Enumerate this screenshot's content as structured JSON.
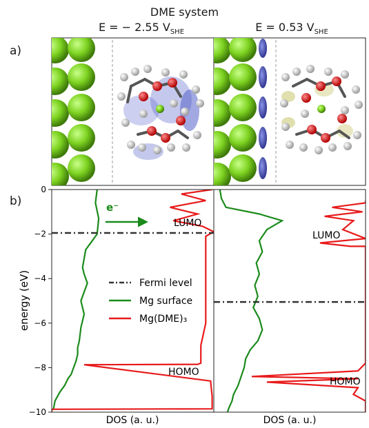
{
  "figure": {
    "title": "DME system",
    "panel_a_label": "a)",
    "panel_b_label": "b)",
    "left_potential": {
      "main": "E = − 2.55 V",
      "sub": "SHE"
    },
    "right_potential": {
      "main": "E = 0.53 V",
      "sub": "SHE"
    }
  },
  "colors": {
    "mg_atom": "#7ed321",
    "mg_surface_line": "#1a8a1a",
    "complex_line": "#e8191a",
    "fermi_line": "#333333",
    "isosurface_blue": "#5561c9",
    "isosurface_yellow": "#d8d79a"
  },
  "chart_data": [
    {
      "type": "line",
      "panel": "left",
      "ylabel": "energy (eV)",
      "xlabel": "DOS (a. u.)",
      "ylim": [
        -10,
        0
      ],
      "yticks": [
        "0",
        "−2",
        "−4",
        "−6",
        "−8",
        "−10"
      ],
      "fermi_level": -1.95,
      "legend": {
        "placement": "center",
        "entries": [
          "Fermi level",
          "Mg surface",
          "Mg(DME)₃"
        ]
      },
      "annotations": {
        "electron": "e⁻",
        "lumo": "LUMO",
        "homo": "HOMO"
      },
      "series": [
        {
          "name": "Mg surface",
          "x": [
            0.28,
            0.27,
            0.29,
            0.28,
            0.25,
            0.21,
            0.2,
            0.19,
            0.2,
            0.22,
            0.2,
            0.18,
            0.2,
            0.18,
            0.17,
            0.16,
            0.16,
            0.15,
            0.14,
            0.13,
            0.12,
            0.1,
            0.08,
            0.05,
            0.02,
            0.01
          ],
          "y": [
            0,
            -0.6,
            -1.3,
            -2.0,
            -2.3,
            -2.7,
            -3.1,
            -3.5,
            -3.8,
            -4.2,
            -4.6,
            -5.0,
            -5.6,
            -6.2,
            -6.8,
            -7.1,
            -7.4,
            -7.7,
            -7.9,
            -8.1,
            -8.3,
            -8.5,
            -8.8,
            -9.1,
            -9.5,
            -9.9
          ]
        },
        {
          "name": "Mg(DME)₃",
          "x": [
            0.99,
            0.8,
            0.95,
            0.73,
            0.9,
            0.75,
            0.93,
            1.0,
            0.95,
            0.95,
            0.95,
            0.92,
            0.92,
            0.92,
            0.9,
            0.9,
            0.2,
            0.98,
            0.99,
            0.99,
            0.0,
            0.0
          ],
          "y": [
            0,
            -0.2,
            -0.5,
            -0.8,
            -1.1,
            -1.4,
            -1.65,
            -1.9,
            -2.1,
            -4.0,
            -6.0,
            -7.0,
            -7.5,
            -7.8,
            -7.85,
            -7.85,
            -7.87,
            -8.6,
            -9.3,
            -9.85,
            -9.87,
            -10
          ]
        }
      ]
    },
    {
      "type": "line",
      "panel": "right",
      "xlabel": "DOS (a. u.)",
      "ylim": [
        -10,
        0
      ],
      "fermi_level": -5.05,
      "annotations": {
        "lumo": "LUMO",
        "homo": "HOMO"
      },
      "series": [
        {
          "name": "Mg surface",
          "x": [
            0.04,
            0.05,
            0.08,
            0.3,
            0.45,
            0.35,
            0.3,
            0.32,
            0.28,
            0.3,
            0.27,
            0.29,
            0.26,
            0.3,
            0.32,
            0.29,
            0.24,
            0.21,
            0.2,
            0.18,
            0.16,
            0.13,
            0.12,
            0.1,
            0.09
          ],
          "y": [
            0,
            -0.4,
            -0.8,
            -1.1,
            -1.4,
            -1.8,
            -2.3,
            -2.8,
            -3.3,
            -3.8,
            -4.3,
            -4.8,
            -5.3,
            -5.8,
            -6.3,
            -6.8,
            -7.2,
            -7.6,
            -8.0,
            -8.4,
            -8.8,
            -9.2,
            -9.5,
            -9.8,
            -10
          ]
        },
        {
          "name": "Mg(DME)₃",
          "x": [
            1.0,
            1.0,
            0.78,
            0.98,
            0.73,
            0.92,
            0.85,
            1.0,
            0.7,
            0.9,
            1.0,
            1.0,
            1.0,
            0.95,
            0.25,
            0.95,
            0.35,
            0.95,
            0.92,
            1.0,
            1.0
          ],
          "y": [
            -0.5,
            -0.6,
            -0.8,
            -1.0,
            -1.2,
            -1.4,
            -1.8,
            -2.2,
            -2.4,
            -2.55,
            -2.55,
            -7.6,
            -7.8,
            -8.15,
            -8.4,
            -8.5,
            -8.65,
            -8.9,
            -9.2,
            -9.5,
            -10
          ]
        }
      ]
    }
  ]
}
